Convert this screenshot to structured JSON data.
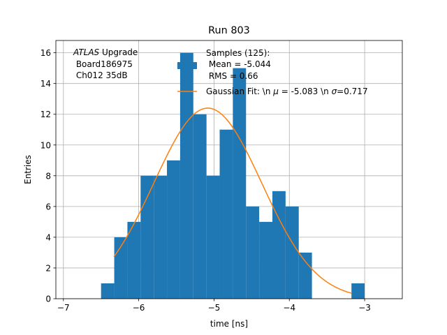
{
  "chart_data": {
    "type": "bar",
    "title": "Run 803",
    "xlabel": "time [ns]",
    "ylabel": "Entries",
    "xlim": [
      -7.1,
      -2.5
    ],
    "ylim": [
      0,
      16.8
    ],
    "grid": true,
    "x_ticks": [
      -7,
      -6,
      -5,
      -4,
      -3
    ],
    "x_tick_labels": [
      "−7",
      "−6",
      "−5",
      "−4",
      "−3"
    ],
    "y_ticks": [
      0,
      2,
      4,
      6,
      8,
      10,
      12,
      14,
      16
    ],
    "y_tick_labels": [
      "0",
      "2",
      "4",
      "6",
      "8",
      "10",
      "12",
      "14",
      "16"
    ],
    "histogram": {
      "color": "#1f77b4",
      "bin_edges": [
        -6.5,
        -6.325,
        -6.15,
        -5.975,
        -5.8,
        -5.625,
        -5.45,
        -5.275,
        -5.1,
        -4.925,
        -4.75,
        -4.575,
        -4.4,
        -4.225,
        -4.05,
        -3.875,
        -3.7,
        -3.525,
        -3.35,
        -3.175,
        -3.0
      ],
      "counts": [
        1,
        4,
        5,
        8,
        8,
        9,
        16,
        12,
        8,
        11,
        15,
        6,
        5,
        7,
        6,
        3,
        0,
        0,
        0,
        1
      ]
    },
    "fit": {
      "color": "#ff7f0e",
      "mu": -5.083,
      "sigma": 0.717,
      "amplitude": 12.4,
      "x_range": [
        -6.33,
        -3.17
      ]
    },
    "legend": {
      "placement": "top-right",
      "samples_label": "Samples (125):",
      "mean_label": " Mean = -5.044",
      "rms_label": " RMS = 0.66",
      "fit_label_prefix": "Gaussian Fit: \\n ",
      "fit_mu_symbol": "μ",
      "fit_mu_text": " = -5.083 \\n ",
      "fit_sigma_symbol": "σ",
      "fit_sigma_text": "=0.717"
    },
    "annotation": {
      "italic": "ATLAS",
      "rest": " Upgrade",
      "line2": " Board186975",
      "line3": " Ch012 35dB"
    }
  }
}
